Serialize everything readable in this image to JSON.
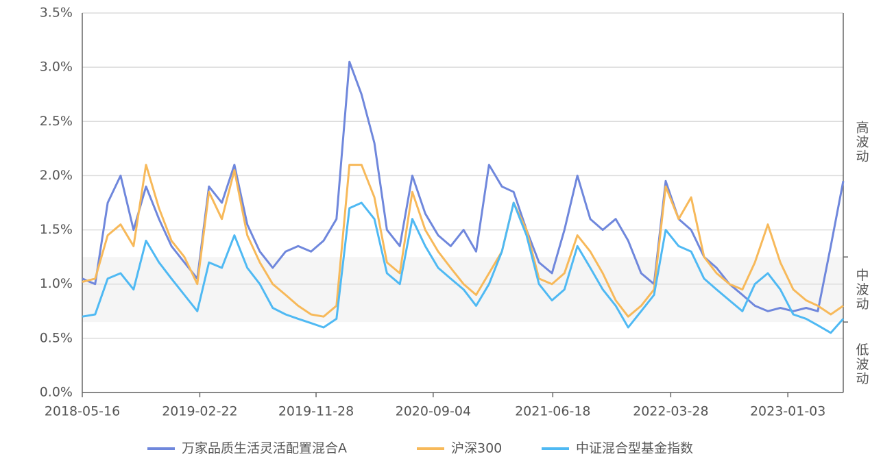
{
  "chart_data": {
    "type": "line",
    "x": [
      "2018-05-16",
      "2018-06-16",
      "2018-07-16",
      "2018-08-16",
      "2018-09-16",
      "2018-10-16",
      "2018-11-16",
      "2018-12-16",
      "2019-01-16",
      "2019-02-16",
      "2019-03-16",
      "2019-04-16",
      "2019-05-16",
      "2019-06-16",
      "2019-07-16",
      "2019-08-16",
      "2019-09-16",
      "2019-10-16",
      "2019-11-16",
      "2019-12-16",
      "2020-01-16",
      "2020-02-16",
      "2020-03-16",
      "2020-04-16",
      "2020-05-16",
      "2020-06-16",
      "2020-07-16",
      "2020-08-16",
      "2020-09-16",
      "2020-10-16",
      "2020-11-16",
      "2020-12-16",
      "2021-01-16",
      "2021-02-16",
      "2021-03-16",
      "2021-04-16",
      "2021-05-16",
      "2021-06-16",
      "2021-07-16",
      "2021-08-16",
      "2021-09-16",
      "2021-10-16",
      "2021-11-16",
      "2021-12-16",
      "2022-01-16",
      "2022-02-16",
      "2022-03-16",
      "2022-04-16",
      "2022-05-16",
      "2022-06-16",
      "2022-07-16",
      "2022-08-16",
      "2022-09-16",
      "2022-10-16",
      "2022-11-16",
      "2022-12-16",
      "2023-01-16",
      "2023-02-16",
      "2023-03-16",
      "2023-04-16",
      "2023-05-16"
    ],
    "series": [
      {
        "name": "万家品质生活灵活配置混合A",
        "color": "#6f87dc",
        "values": [
          1.05,
          1.0,
          1.75,
          2.0,
          1.5,
          1.9,
          1.6,
          1.35,
          1.2,
          1.05,
          1.9,
          1.75,
          2.1,
          1.55,
          1.3,
          1.15,
          1.3,
          1.35,
          1.3,
          1.4,
          1.6,
          3.05,
          2.75,
          2.3,
          1.5,
          1.35,
          2.0,
          1.65,
          1.45,
          1.35,
          1.5,
          1.3,
          2.1,
          1.9,
          1.85,
          1.5,
          1.2,
          1.1,
          1.5,
          2.0,
          1.6,
          1.5,
          1.6,
          1.4,
          1.1,
          1.0,
          1.95,
          1.6,
          1.5,
          1.25,
          1.15,
          1.0,
          0.9,
          0.8,
          0.75,
          0.78,
          0.75,
          0.78,
          0.75,
          1.35,
          1.95
        ]
      },
      {
        "name": "沪深300",
        "color": "#f7b95a",
        "values": [
          1.02,
          1.05,
          1.45,
          1.55,
          1.35,
          2.1,
          1.7,
          1.4,
          1.25,
          1.0,
          1.85,
          1.6,
          2.05,
          1.45,
          1.2,
          1.0,
          0.9,
          0.8,
          0.72,
          0.7,
          0.8,
          2.1,
          2.1,
          1.8,
          1.2,
          1.1,
          1.85,
          1.5,
          1.3,
          1.15,
          1.0,
          0.9,
          1.1,
          1.3,
          1.75,
          1.5,
          1.05,
          1.0,
          1.1,
          1.45,
          1.3,
          1.1,
          0.85,
          0.7,
          0.8,
          0.95,
          1.9,
          1.6,
          1.8,
          1.25,
          1.1,
          1.0,
          0.95,
          1.2,
          1.55,
          1.2,
          0.95,
          0.85,
          0.8,
          0.72,
          0.8
        ]
      },
      {
        "name": "中证混合型基金指数",
        "color": "#4fb9f3",
        "values": [
          0.7,
          0.72,
          1.05,
          1.1,
          0.95,
          1.4,
          1.2,
          1.05,
          0.9,
          0.75,
          1.2,
          1.15,
          1.45,
          1.15,
          1.0,
          0.78,
          0.72,
          0.68,
          0.64,
          0.6,
          0.68,
          1.7,
          1.75,
          1.6,
          1.1,
          1.0,
          1.6,
          1.35,
          1.15,
          1.05,
          0.95,
          0.8,
          1.0,
          1.3,
          1.75,
          1.45,
          1.0,
          0.85,
          0.95,
          1.35,
          1.15,
          0.95,
          0.8,
          0.6,
          0.75,
          0.9,
          1.5,
          1.35,
          1.3,
          1.05,
          0.95,
          0.85,
          0.75,
          1.0,
          1.1,
          0.95,
          0.72,
          0.68,
          0.62,
          0.55,
          0.68
        ]
      }
    ],
    "xlim": [
      "2018-05-16",
      "2023-05-16"
    ],
    "xticks": [
      "2018-05-16",
      "2019-02-22",
      "2019-11-28",
      "2020-09-04",
      "2021-06-18",
      "2022-03-28",
      "2023-01-03"
    ],
    "ylim": [
      0,
      3.5
    ],
    "yticks": [
      {
        "value": 0,
        "label": "0.0%"
      },
      {
        "value": 0.5,
        "label": "0.5%"
      },
      {
        "value": 1,
        "label": "1.0%"
      },
      {
        "value": 1.5,
        "label": "1.5%"
      },
      {
        "value": 2,
        "label": "2.0%"
      },
      {
        "value": 2.5,
        "label": "2.5%"
      },
      {
        "value": 3,
        "label": "3.0%"
      },
      {
        "value": 3.5,
        "label": "3.5%"
      }
    ],
    "y2ticks": [
      0.65,
      1.25
    ],
    "y2_labels": [
      "低波动",
      "中波动",
      "高波动"
    ],
    "grid": true,
    "legend": "bottom"
  }
}
